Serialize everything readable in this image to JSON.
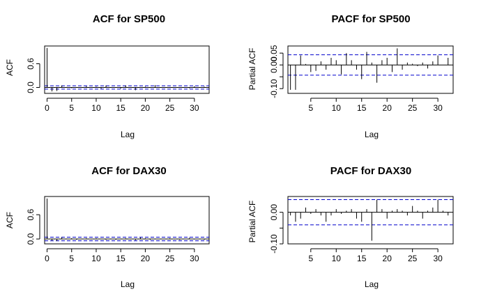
{
  "chart_data": [
    {
      "type": "bar",
      "title": "ACF for SP500",
      "xlabel": "Lag",
      "ylabel": "ACF",
      "xlim": [
        -0.5,
        33
      ],
      "ylim": [
        -0.15,
        1.05
      ],
      "xticks": [
        0,
        5,
        10,
        15,
        20,
        25,
        30
      ],
      "yticks": [
        0.0,
        0.6
      ],
      "ytick_labels": [
        "0.0",
        "0.6"
      ],
      "confidence_bound": 0.043,
      "x": [
        0,
        1,
        2,
        3,
        4,
        5,
        6,
        7,
        8,
        9,
        10,
        11,
        12,
        13,
        14,
        15,
        16,
        17,
        18,
        19,
        20,
        21,
        22,
        23,
        24,
        25,
        26,
        27,
        28,
        29,
        30,
        31,
        32
      ],
      "values": [
        1.0,
        -0.1,
        -0.09,
        0.05,
        0.01,
        -0.02,
        0.01,
        -0.01,
        0.03,
        0.01,
        0.02,
        -0.03,
        0.05,
        0.01,
        -0.01,
        -0.03,
        0.05,
        0.01,
        -0.07,
        0.01,
        0.02,
        -0.01,
        0.06,
        0.0,
        -0.01,
        0.01,
        0.0,
        -0.01,
        0.01,
        -0.02,
        0.03,
        -0.01,
        0.02
      ]
    },
    {
      "type": "bar",
      "title": "PACF for SP500",
      "xlabel": "Lag",
      "ylabel": "Partial ACF",
      "xlim": [
        0.5,
        33
      ],
      "ylim": [
        -0.12,
        0.08
      ],
      "xticks": [
        5,
        10,
        15,
        20,
        25,
        30
      ],
      "yticks": [
        -0.1,
        -0.05,
        0.0,
        0.05
      ],
      "ytick_labels": [
        "-0.10",
        "",
        "0.00",
        "0.05"
      ],
      "confidence_bound": 0.043,
      "x": [
        1,
        2,
        3,
        4,
        5,
        6,
        7,
        8,
        9,
        10,
        11,
        12,
        13,
        14,
        15,
        16,
        17,
        18,
        19,
        20,
        21,
        22,
        23,
        24,
        25,
        26,
        27,
        28,
        29,
        30,
        31,
        32
      ],
      "values": [
        -0.105,
        -0.105,
        0.04,
        0.004,
        -0.03,
        -0.025,
        0.015,
        -0.02,
        0.03,
        0.02,
        -0.04,
        0.05,
        0.02,
        -0.02,
        -0.06,
        0.055,
        0.01,
        -0.075,
        0.02,
        0.03,
        -0.03,
        0.07,
        -0.02,
        0.01,
        0.005,
        -0.005,
        0.01,
        -0.015,
        0.015,
        0.04,
        0.0,
        0.03
      ]
    },
    {
      "type": "bar",
      "title": "ACF for DAX30",
      "xlabel": "Lag",
      "ylabel": "ACF",
      "xlim": [
        -0.5,
        33
      ],
      "ylim": [
        -0.12,
        1.05
      ],
      "xticks": [
        0,
        5,
        10,
        15,
        20,
        25,
        30
      ],
      "yticks": [
        0.0,
        0.6
      ],
      "ytick_labels": [
        "0.0",
        "0.6"
      ],
      "confidence_bound": 0.045,
      "x": [
        0,
        1,
        2,
        3,
        4,
        5,
        6,
        7,
        8,
        9,
        10,
        11,
        12,
        13,
        14,
        15,
        16,
        17,
        18,
        19,
        20,
        21,
        22,
        23,
        24,
        25,
        26,
        27,
        28,
        29,
        30,
        31,
        32
      ],
      "values": [
        1.0,
        -0.04,
        -0.05,
        0.04,
        0.01,
        0.02,
        -0.02,
        0.01,
        0.02,
        -0.01,
        0.02,
        0.01,
        -0.02,
        0.01,
        -0.02,
        0.01,
        0.02,
        -0.01,
        -0.03,
        0.04,
        0.02,
        -0.02,
        0.01,
        0.0,
        0.01,
        0.02,
        -0.01,
        -0.02,
        0.01,
        0.03,
        -0.01,
        0.0,
        -0.02
      ]
    },
    {
      "type": "bar",
      "title": "PACF for DAX30",
      "xlabel": "Lag",
      "ylabel": "Partial ACF",
      "xlim": [
        0.5,
        33
      ],
      "ylim": [
        -0.1,
        0.05
      ],
      "xticks": [
        5,
        10,
        15,
        20,
        25,
        30
      ],
      "yticks": [
        -0.1,
        -0.05,
        0.0
      ],
      "ytick_labels": [
        "-0.10",
        "",
        "0.00"
      ],
      "confidence_bound": 0.04,
      "x": [
        1,
        2,
        3,
        4,
        5,
        6,
        7,
        8,
        9,
        10,
        11,
        12,
        13,
        14,
        15,
        16,
        17,
        18,
        19,
        20,
        21,
        22,
        23,
        24,
        25,
        26,
        27,
        28,
        29,
        30,
        31,
        32
      ],
      "values": [
        -0.01,
        -0.03,
        -0.02,
        0.015,
        -0.005,
        0.01,
        -0.01,
        -0.03,
        -0.01,
        0.01,
        -0.005,
        0.005,
        0.01,
        -0.02,
        -0.03,
        0.01,
        -0.09,
        0.04,
        0.01,
        -0.02,
        0.005,
        0.01,
        0.005,
        -0.01,
        0.02,
        0.005,
        -0.02,
        0.005,
        0.015,
        0.04,
        0.005,
        -0.01
      ]
    }
  ],
  "style": {
    "bar_color": "#000000",
    "bound_color": "#0000cc",
    "axis_color": "#000000"
  }
}
